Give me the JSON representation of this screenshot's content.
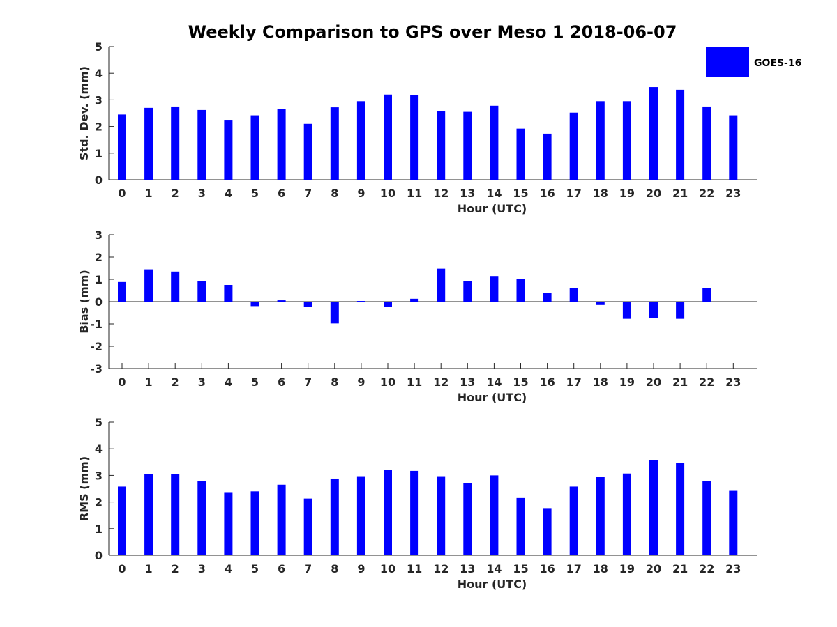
{
  "title": "Weekly Comparison to GPS over Meso 1 2018-06-07",
  "legend": {
    "label": "GOES-16",
    "color": "#0000ff"
  },
  "bar_color": "#0000ff",
  "chart_data": [
    {
      "type": "bar",
      "name": "std-dev",
      "categories": [
        "0",
        "1",
        "2",
        "3",
        "4",
        "5",
        "6",
        "7",
        "8",
        "9",
        "10",
        "11",
        "12",
        "13",
        "14",
        "15",
        "16",
        "17",
        "18",
        "19",
        "20",
        "21",
        "22",
        "23"
      ],
      "values": [
        2.45,
        2.7,
        2.75,
        2.62,
        2.25,
        2.42,
        2.67,
        2.1,
        2.72,
        2.95,
        3.2,
        3.17,
        2.57,
        2.55,
        2.78,
        1.92,
        1.73,
        2.52,
        2.95,
        2.95,
        3.48,
        3.38,
        2.75,
        2.42
      ],
      "ylim": [
        0,
        5
      ],
      "yticks": [
        "0",
        "1",
        "2",
        "3",
        "4",
        "5"
      ],
      "xlabel": "Hour (UTC)",
      "ylabel": "Std. Dev. (mm)"
    },
    {
      "type": "bar",
      "name": "bias",
      "categories": [
        "0",
        "1",
        "2",
        "3",
        "4",
        "5",
        "6",
        "7",
        "8",
        "9",
        "10",
        "11",
        "12",
        "13",
        "14",
        "15",
        "16",
        "17",
        "18",
        "19",
        "20",
        "21",
        "22",
        "23"
      ],
      "values": [
        0.88,
        1.45,
        1.35,
        0.93,
        0.75,
        -0.2,
        0.06,
        -0.25,
        -0.98,
        0.03,
        -0.22,
        0.13,
        1.48,
        0.93,
        1.15,
        1.0,
        0.38,
        0.6,
        -0.15,
        -0.77,
        -0.73,
        -0.77,
        0.6,
        0.0
      ],
      "ylim": [
        -3,
        3
      ],
      "yticks": [
        "-3",
        "-2",
        "-1",
        "0",
        "1",
        "2",
        "3"
      ],
      "xlabel": "Hour (UTC)",
      "ylabel": "Bias (mm)"
    },
    {
      "type": "bar",
      "name": "rms",
      "categories": [
        "0",
        "1",
        "2",
        "3",
        "4",
        "5",
        "6",
        "7",
        "8",
        "9",
        "10",
        "11",
        "12",
        "13",
        "14",
        "15",
        "16",
        "17",
        "18",
        "19",
        "20",
        "21",
        "22",
        "23"
      ],
      "values": [
        2.58,
        3.05,
        3.05,
        2.78,
        2.37,
        2.4,
        2.65,
        2.13,
        2.88,
        2.97,
        3.2,
        3.17,
        2.97,
        2.7,
        3.0,
        2.15,
        1.77,
        2.58,
        2.95,
        3.07,
        3.58,
        3.47,
        2.8,
        2.42
      ],
      "ylim": [
        0,
        5
      ],
      "yticks": [
        "0",
        "1",
        "2",
        "3",
        "4",
        "5"
      ],
      "xlabel": "Hour (UTC)",
      "ylabel": "RMS (mm)"
    }
  ]
}
